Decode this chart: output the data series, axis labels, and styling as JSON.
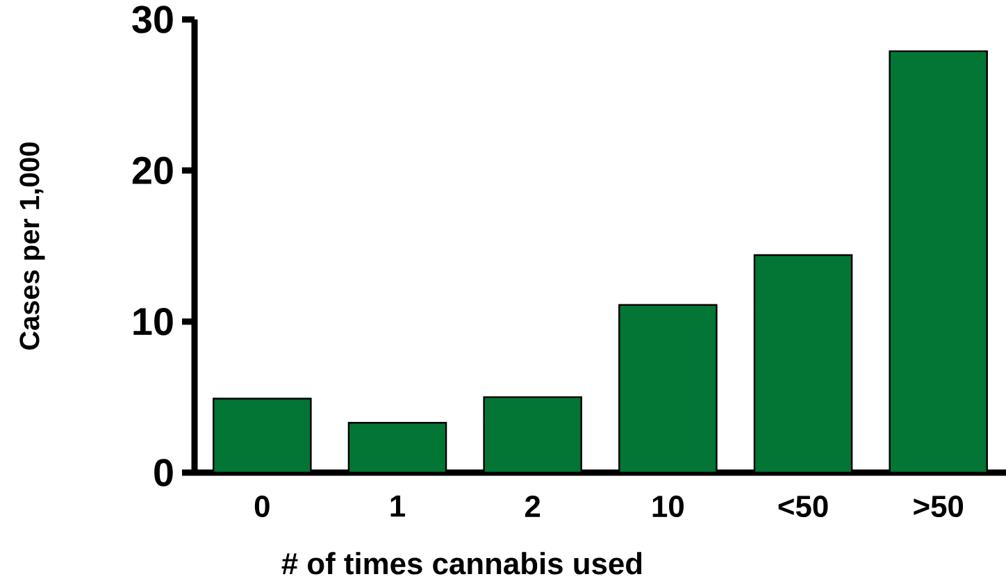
{
  "chart_data": {
    "type": "bar",
    "xlabel": "# of times cannabis used",
    "ylabel": "Cases per 1,000",
    "categories": [
      "0",
      "1",
      "2",
      "10",
      "<50",
      ">50"
    ],
    "values": [
      4.9,
      3.3,
      5.0,
      11.1,
      14.4,
      27.9
    ],
    "color": "#037535",
    "ylim": [
      0,
      30
    ],
    "yticks": [
      0,
      10,
      20,
      30
    ]
  }
}
